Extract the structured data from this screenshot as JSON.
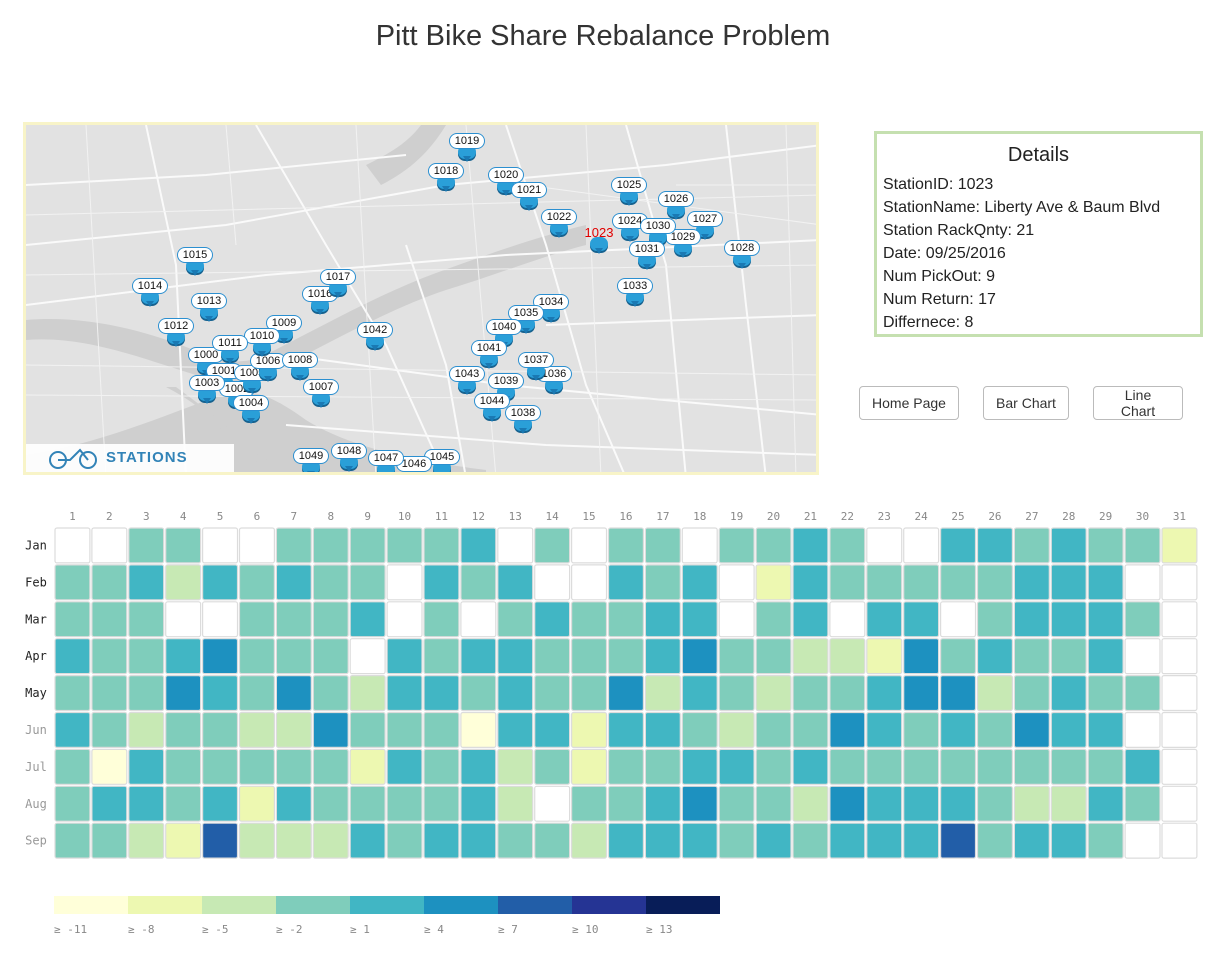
{
  "page": {
    "title": "Pitt Bike Share Rebalance Problem"
  },
  "map": {
    "badge_text": "STATIONS",
    "selected_station": "1023",
    "stations": [
      "1000",
      "1001",
      "1002",
      "1003",
      "1004",
      "1005",
      "1006",
      "1007",
      "1008",
      "1009",
      "1010",
      "1011",
      "1012",
      "1013",
      "1014",
      "1015",
      "1016",
      "1017",
      "1018",
      "1019",
      "1020",
      "1021",
      "1022",
      "1023",
      "1024",
      "1025",
      "1026",
      "1027",
      "1028",
      "1029",
      "1030",
      "1031",
      "1033",
      "1034",
      "1035",
      "1036",
      "1037",
      "1038",
      "1039",
      "1040",
      "1041",
      "1042",
      "1043",
      "1044",
      "1045",
      "1046",
      "1047",
      "1048",
      "1049"
    ]
  },
  "details": {
    "heading": "Details",
    "rows": [
      "StationID: 1023",
      "StationName: Liberty Ave & Baum Blvd",
      "Station RackQnty: 21",
      "Date: 09/25/2016",
      "Num PickOut: 9",
      "Num Return: 17",
      "Differnece: 8"
    ]
  },
  "buttons": {
    "home": "Home Page",
    "bar": "Bar Chart",
    "line": "Line Chart"
  },
  "chart_data": {
    "type": "heatmap",
    "x": [
      1,
      2,
      3,
      4,
      5,
      6,
      7,
      8,
      9,
      10,
      11,
      12,
      13,
      14,
      15,
      16,
      17,
      18,
      19,
      20,
      21,
      22,
      23,
      24,
      25,
      26,
      27,
      28,
      29,
      30,
      31
    ],
    "y": [
      "Jan",
      "Feb",
      "Mar",
      "Apr",
      "May",
      "Jun",
      "Jul",
      "Aug",
      "Sep"
    ],
    "bin_note_legend": [
      "≥ -11",
      "≥ -8",
      "≥ -5",
      "≥ -2",
      "≥ 1",
      "≥ 4",
      "≥ 7",
      "≥ 10",
      "≥ 13"
    ],
    "colors": [
      "#ffffd9",
      "#edf8b1",
      "#c7e9b4",
      "#7fcdbb",
      "#41b6c4",
      "#1d91c0",
      "#225ea8",
      "#253494",
      "#081d58"
    ],
    "bins": [
      [
        null,
        null,
        3,
        3,
        null,
        null,
        3,
        3,
        3,
        3,
        3,
        4,
        null,
        3,
        null,
        3,
        3,
        null,
        3,
        3,
        4,
        3,
        null,
        null,
        4,
        4,
        3,
        4,
        3,
        3,
        1
      ],
      [
        3,
        3,
        4,
        2,
        4,
        3,
        4,
        3,
        3,
        null,
        4,
        3,
        4,
        null,
        null,
        4,
        3,
        4,
        null,
        1,
        4,
        3,
        3,
        3,
        3,
        3,
        4,
        4,
        4,
        null,
        null
      ],
      [
        3,
        3,
        3,
        null,
        null,
        3,
        3,
        3,
        4,
        null,
        3,
        null,
        3,
        4,
        3,
        3,
        4,
        4,
        null,
        3,
        4,
        null,
        4,
        4,
        null,
        3,
        4,
        4,
        4,
        3,
        null
      ],
      [
        4,
        3,
        3,
        4,
        5,
        3,
        3,
        3,
        null,
        4,
        3,
        4,
        4,
        3,
        3,
        3,
        4,
        5,
        3,
        3,
        2,
        2,
        1,
        5,
        3,
        4,
        3,
        3,
        4,
        null,
        null
      ],
      [
        3,
        3,
        3,
        5,
        4,
        3,
        5,
        3,
        2,
        4,
        4,
        3,
        4,
        3,
        3,
        5,
        2,
        4,
        3,
        2,
        3,
        3,
        4,
        5,
        5,
        2,
        3,
        4,
        3,
        3,
        null
      ],
      [
        4,
        3,
        2,
        3,
        3,
        2,
        2,
        5,
        3,
        3,
        3,
        0,
        4,
        4,
        1,
        4,
        4,
        3,
        2,
        3,
        3,
        5,
        4,
        3,
        4,
        3,
        5,
        4,
        4,
        null,
        null
      ],
      [
        3,
        0,
        4,
        3,
        3,
        3,
        3,
        3,
        1,
        4,
        3,
        4,
        2,
        3,
        1,
        3,
        3,
        4,
        4,
        3,
        4,
        3,
        3,
        3,
        3,
        3,
        3,
        3,
        3,
        4,
        null
      ],
      [
        3,
        4,
        4,
        3,
        4,
        1,
        4,
        3,
        3,
        3,
        3,
        4,
        2,
        null,
        3,
        3,
        4,
        5,
        3,
        3,
        2,
        5,
        4,
        4,
        4,
        3,
        2,
        2,
        4,
        3,
        null
      ],
      [
        3,
        3,
        2,
        1,
        6,
        2,
        2,
        2,
        4,
        3,
        4,
        4,
        3,
        3,
        2,
        4,
        4,
        4,
        3,
        4,
        3,
        4,
        4,
        4,
        6,
        3,
        4,
        4,
        3,
        null,
        null
      ]
    ],
    "xlabel": "",
    "ylabel": ""
  }
}
